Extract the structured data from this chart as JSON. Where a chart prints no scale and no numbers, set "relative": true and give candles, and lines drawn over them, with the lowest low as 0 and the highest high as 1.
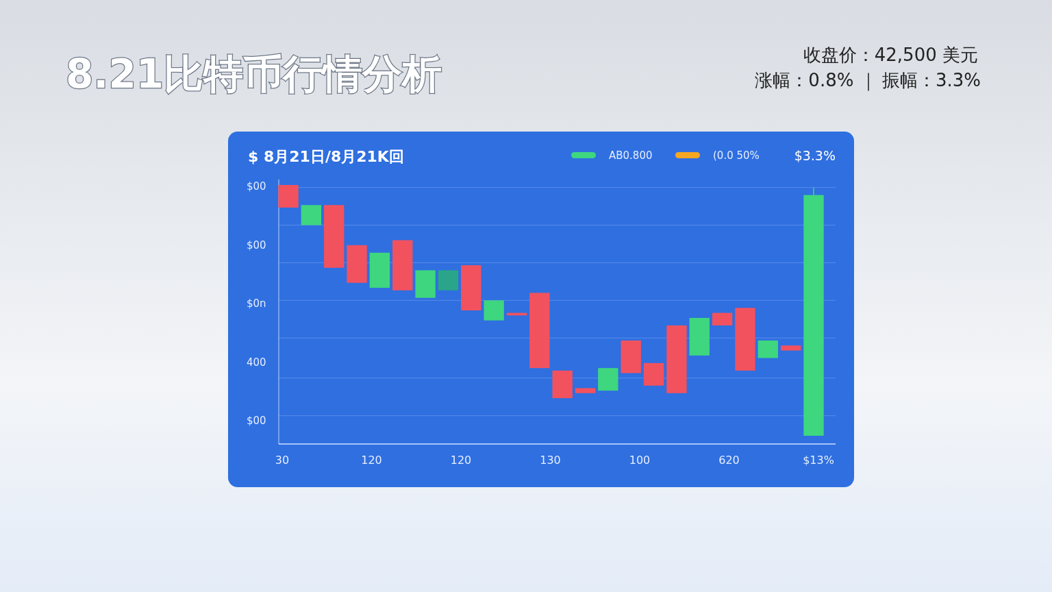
{
  "chart_data": {
    "type": "candlestick",
    "title": "8.21比特币行情分析",
    "subtitle": "$ 8月21日/8月21K回",
    "annotations": [
      "收盘价：42,500 美元",
      "涨幅：0.8% ｜ 振幅：3.3%",
      "$3.3%",
      "$00",
      "$00",
      "$0n",
      "400",
      "$00",
      "30",
      "120",
      "120",
      "130",
      "100",
      "620",
      "$13%",
      "AB0.800",
      "(0.0 50%"
    ],
    "relative": true,
    "categories": [
      null,
      null,
      null,
      null,
      null,
      null,
      null,
      null,
      null,
      null,
      null,
      null,
      null,
      null,
      null,
      null,
      null,
      null,
      null,
      null,
      null,
      null,
      null,
      null
    ],
    "ohlc": [
      [
        1.0,
        1.0,
        0.91,
        0.91
      ],
      [
        0.84,
        0.92,
        0.84,
        0.92
      ],
      [
        0.92,
        0.92,
        0.67,
        0.67
      ],
      [
        0.76,
        0.76,
        0.61,
        0.61
      ],
      [
        0.59,
        0.73,
        0.59,
        0.73
      ],
      [
        0.78,
        0.78,
        0.58,
        0.58
      ],
      [
        0.55,
        0.66,
        0.55,
        0.66
      ],
      [
        0.58,
        0.66,
        0.58,
        0.66
      ],
      [
        0.68,
        0.68,
        0.5,
        0.5
      ],
      [
        0.46,
        0.54,
        0.46,
        0.54
      ],
      [
        0.49,
        0.49,
        0.48,
        0.48
      ],
      [
        0.57,
        0.57,
        0.27,
        0.27
      ],
      [
        0.26,
        0.26,
        0.15,
        0.15
      ],
      [
        0.19,
        0.19,
        0.17,
        0.17
      ],
      [
        0.18,
        0.27,
        0.18,
        0.27
      ],
      [
        0.38,
        0.38,
        0.25,
        0.25
      ],
      [
        0.29,
        0.29,
        0.2,
        0.2
      ],
      [
        0.44,
        0.44,
        0.17,
        0.17
      ],
      [
        0.32,
        0.47,
        0.32,
        0.47
      ],
      [
        0.49,
        0.49,
        0.44,
        0.44
      ],
      [
        0.51,
        0.51,
        0.26,
        0.26
      ],
      [
        0.31,
        0.38,
        0.31,
        0.38
      ],
      [
        0.36,
        0.36,
        0.34,
        0.34
      ],
      [
        0.0,
        0.99,
        0.0,
        0.96
      ]
    ],
    "colors": [
      "#f2525e",
      "#3ed67f",
      "#f2525e",
      "#f2525e",
      "#3ed67f",
      "#f2525e",
      "#3ed67f",
      "#2aa58a",
      "#f2525e",
      "#3ed67f",
      "#f2525e",
      "#f2525e",
      "#f2525e",
      "#f2525e",
      "#3ed67f",
      "#f2525e",
      "#f2525e",
      "#f2525e",
      "#3ed67f",
      "#f2525e",
      "#f2525e",
      "#3ed67f",
      "#f2525e",
      "#3ed67f"
    ],
    "ref_lines": [
      {
        "axis": "y",
        "value": 0.99,
        "color": "#5a8cea"
      },
      {
        "axis": "y",
        "value": 0.84,
        "color": "#5a8cea"
      },
      {
        "axis": "y",
        "value": 0.69,
        "color": "#5a8cea"
      },
      {
        "axis": "y",
        "value": 0.54,
        "color": "#5a8cea"
      },
      {
        "axis": "y",
        "value": 0.39,
        "color": "#5a8cea"
      },
      {
        "axis": "y",
        "value": 0.23,
        "color": "#5a8cea"
      },
      {
        "axis": "y",
        "value": 0.08,
        "color": "#5a8cea"
      }
    ]
  }
}
